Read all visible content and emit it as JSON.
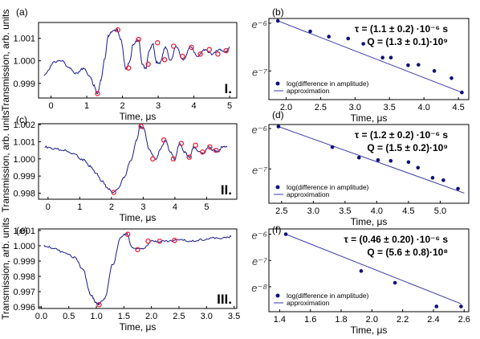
{
  "chart_data": [
    {
      "id": "a",
      "type": "line",
      "panel_label": "(a)",
      "roman": "I.",
      "xlabel": "Time, μs",
      "ylabel": "Transmission, arb. units",
      "xlim": [
        -0.35,
        5.2
      ],
      "ylim": [
        0.99835,
        1.0017
      ],
      "xticks": [
        "0",
        "1",
        "2",
        "3",
        "4",
        "5"
      ],
      "yticks": [
        "0.999",
        "1.000",
        "1.001"
      ],
      "curve": {
        "x": [
          -0.2,
          0.1,
          0.3,
          0.5,
          0.7,
          0.9,
          1.1,
          1.2,
          1.3,
          1.4,
          1.5,
          1.6,
          1.7,
          1.85,
          1.95,
          2.1,
          2.2,
          2.3,
          2.45,
          2.55,
          2.65,
          2.75,
          2.85,
          2.95,
          3.05,
          3.2,
          3.35,
          3.5,
          3.7,
          3.9,
          4.1,
          4.3,
          4.5,
          4.7,
          4.9,
          5.0
        ],
        "y": [
          0.99935,
          0.99995,
          1.0,
          0.9997,
          0.99945,
          0.99965,
          0.9993,
          0.9989,
          0.99855,
          0.99915,
          1.0001,
          1.0011,
          1.0013,
          1.00137,
          1.00095,
          0.99963,
          0.99995,
          1.00075,
          1.00095,
          0.99985,
          0.99965,
          1.00045,
          1.00075,
          0.99995,
          0.9999,
          1.0006,
          1.0,
          1.00065,
          1.00005,
          1.0006,
          1.0002,
          1.0005,
          1.0003,
          1.0005,
          1.0004,
          1.0006
        ]
      },
      "points": {
        "x": [
          1.3,
          1.87,
          2.17,
          2.45,
          2.72,
          2.98,
          3.18,
          3.43,
          3.68,
          3.93,
          4.18,
          4.43,
          4.67,
          4.9
        ],
        "y": [
          0.99855,
          1.00137,
          0.99968,
          1.00095,
          0.99985,
          1.0008,
          1.00005,
          1.00065,
          1.0002,
          1.0006,
          1.0003,
          1.0005,
          1.0003,
          1.00045
        ]
      }
    },
    {
      "id": "b",
      "type": "scatter",
      "panel_label": "(b)",
      "xlim": [
        1.75,
        4.65
      ],
      "ylim": [
        -7.6,
        -5.9
      ],
      "xticks": [
        "2.0",
        "2.5",
        "3.0",
        "3.5",
        "4.0",
        "4.5"
      ],
      "ytick_labels": [
        {
          "value": -6,
          "label": "e⁻⁶"
        },
        {
          "value": -7,
          "label": "e⁻⁷"
        }
      ],
      "xlabel": "Time, μs",
      "legend": {
        "position": "bottom-left",
        "points_label": "log(difference in amplitude)",
        "line_label": "approximation"
      },
      "annotation": [
        "τ = (1.1 ± 0.2) ·10⁻⁶ s",
        "Q = (1.3 ± 0.1)·10⁹"
      ],
      "points": {
        "x": [
          1.88,
          2.35,
          2.62,
          2.9,
          3.12,
          3.4,
          3.52,
          3.77,
          3.92,
          4.15,
          4.4,
          4.55
        ],
        "y": [
          -5.95,
          -6.17,
          -6.28,
          -6.32,
          -6.43,
          -6.72,
          -6.72,
          -6.88,
          -6.87,
          -7.0,
          -7.15,
          -7.45
        ]
      },
      "fit": {
        "x": [
          1.88,
          4.55
        ],
        "y": [
          -5.95,
          -7.45
        ]
      }
    },
    {
      "id": "c",
      "type": "line",
      "panel_label": "(c)",
      "roman": "II.",
      "xlabel": "Time, μs",
      "ylabel": "Transmission, arb. units",
      "xlim": [
        -0.3,
        5.95
      ],
      "ylim": [
        0.99765,
        1.00205
      ],
      "xticks": [
        "0",
        "1",
        "2",
        "3",
        "4",
        "5"
      ],
      "yticks": [
        "0.998",
        "0.999",
        "1.000",
        "1.001",
        "1.002"
      ],
      "curve": {
        "x": [
          -0.1,
          0.2,
          0.5,
          0.8,
          1.1,
          1.3,
          1.5,
          1.7,
          1.9,
          2.05,
          2.2,
          2.4,
          2.6,
          2.8,
          2.9,
          3.0,
          3.2,
          3.4,
          3.55,
          3.7,
          3.85,
          4.0,
          4.15,
          4.3,
          4.45,
          4.6,
          4.75,
          4.9,
          5.05,
          5.2,
          5.35,
          5.5,
          5.65
        ],
        "y": [
          1.0007,
          1.0006,
          1.0005,
          1.0003,
          0.99995,
          0.9996,
          0.9992,
          0.9987,
          0.99825,
          0.99805,
          0.99825,
          0.9989,
          0.99985,
          1.0011,
          1.0019,
          1.0018,
          1.0005,
          0.99995,
          1.0006,
          1.0011,
          1.0004,
          1.0,
          1.0009,
          1.0004,
          1.0001,
          1.0007,
          1.0004,
          1.0003,
          1.0007,
          1.0005,
          1.0004,
          1.0007,
          1.0007
        ]
      },
      "points": {
        "x": [
          2.07,
          2.93,
          3.3,
          3.65,
          3.95,
          4.2,
          4.45,
          4.65,
          4.87,
          5.1,
          5.3
        ],
        "y": [
          0.99805,
          1.0019,
          1.0,
          1.0011,
          1.0,
          1.0009,
          1.0001,
          1.0008,
          1.0004,
          1.0007,
          1.0005
        ]
      }
    },
    {
      "id": "d",
      "type": "scatter",
      "panel_label": "(d)",
      "xlim": [
        2.3,
        5.45
      ],
      "ylim": [
        -7.85,
        -5.9
      ],
      "xticks": [
        "2.5",
        "3.0",
        "3.5",
        "4.0",
        "4.5",
        "5.0"
      ],
      "ytick_labels": [
        {
          "value": -6,
          "label": "e⁻⁶"
        },
        {
          "value": -7,
          "label": "e⁻⁷"
        }
      ],
      "xlabel": "Time, μs",
      "legend": {
        "position": "bottom-left",
        "points_label": "log(difference in amplitude)",
        "line_label": "approximation"
      },
      "annotation": [
        "τ = (1.2 ± 0.2) ·10⁻⁶ s",
        "Q = (1.5 ± 0.2)·10⁹"
      ],
      "points": {
        "x": [
          2.45,
          3.3,
          3.72,
          4.02,
          4.22,
          4.5,
          4.65,
          4.88,
          5.05,
          5.28
        ],
        "y": [
          -5.95,
          -6.46,
          -6.72,
          -6.78,
          -6.8,
          -6.83,
          -6.97,
          -7.22,
          -7.28,
          -7.49
        ]
      },
      "fit": {
        "x": [
          2.45,
          5.38
        ],
        "y": [
          -5.95,
          -7.6
        ]
      }
    },
    {
      "id": "e",
      "type": "line",
      "panel_label": "(e)",
      "roman": "III.",
      "xlabel": "Time, μs",
      "ylabel": "Transmission, arb. units",
      "xlim": [
        -0.05,
        3.55
      ],
      "ylim": [
        0.9959,
        1.0011
      ],
      "xticks": [
        "0.0",
        "0.5",
        "1.0",
        "1.5",
        "2.0",
        "2.5",
        "3.0",
        "3.5"
      ],
      "yticks": [
        "0.996",
        "0.997",
        "0.998",
        "0.999",
        "1.000",
        "1.001"
      ],
      "curve": {
        "x": [
          0.05,
          0.2,
          0.4,
          0.6,
          0.75,
          0.9,
          1.0,
          1.05,
          1.15,
          1.3,
          1.45,
          1.55,
          1.65,
          1.75,
          1.85,
          2.0,
          2.15,
          2.3,
          2.5,
          2.7,
          2.9,
          3.1,
          3.3,
          3.45
        ],
        "y": [
          1.0,
          0.99985,
          0.9996,
          0.99925,
          0.9985,
          0.9968,
          0.99625,
          0.9962,
          0.99655,
          0.9988,
          1.0006,
          1.0008,
          0.9999,
          0.9998,
          0.99985,
          1.0003,
          1.0003,
          1.0003,
          1.0004,
          1.0003,
          1.0004,
          1.0005,
          1.0005,
          1.0006
        ]
      },
      "points": {
        "x": [
          1.05,
          1.57,
          1.75,
          1.94,
          2.15,
          2.42
        ],
        "y": [
          0.99615,
          1.00075,
          0.99975,
          1.0003,
          1.0003,
          1.00035
        ]
      }
    },
    {
      "id": "f",
      "type": "scatter",
      "panel_label": "(f)",
      "xlim": [
        1.33,
        2.63
      ],
      "ylim": [
        -8.95,
        -5.8
      ],
      "xticks": [
        "1.4",
        "1.6",
        "1.8",
        "2.0",
        "2.2",
        "2.4",
        "2.6"
      ],
      "ytick_labels": [
        {
          "value": -6,
          "label": "e⁻⁶"
        },
        {
          "value": -7,
          "label": "e⁻⁷"
        },
        {
          "value": -8,
          "label": "e⁻⁸"
        }
      ],
      "xlabel": "Time, μs",
      "legend": {
        "position": "bottom-left",
        "points_label": "log(difference in amplitude)",
        "line_label": "approximation"
      },
      "annotation": [
        "τ = (0.46 ± 0.20) ·10⁻⁶ s",
        "Q = (5.6 ± 0.8)·10⁸"
      ],
      "points": {
        "x": [
          1.44,
          1.93,
          2.15,
          2.42,
          2.58
        ],
        "y": [
          -6.0,
          -7.4,
          -7.85,
          -8.75,
          -8.75
        ]
      },
      "fit": {
        "x": [
          1.44,
          2.58
        ],
        "y": [
          -6.0,
          -8.65
        ]
      }
    }
  ]
}
